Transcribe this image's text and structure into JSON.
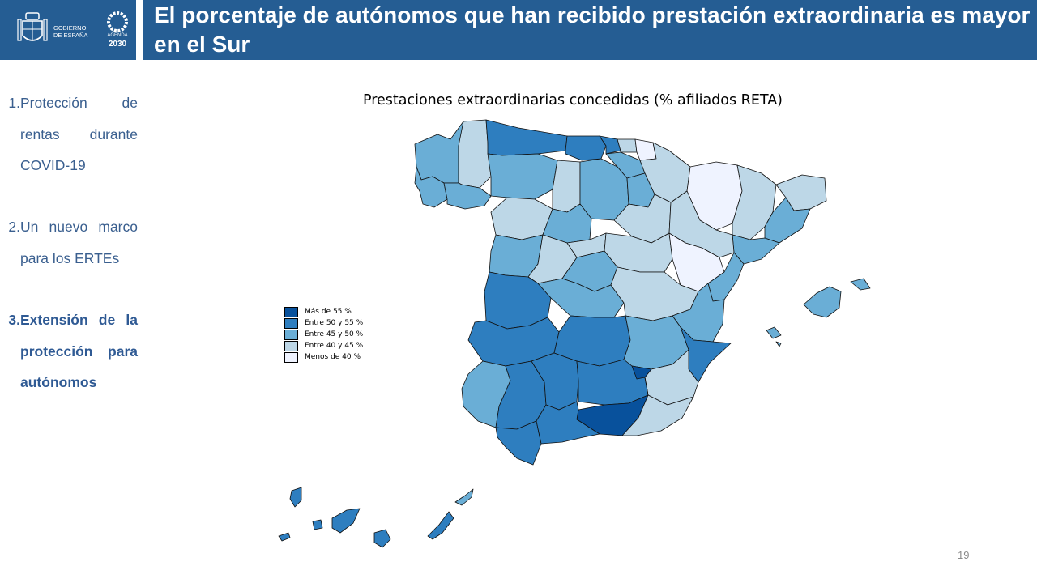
{
  "header": {
    "title": "El porcentaje de autónomos que han recibido prestación extraordinaria es mayor en el Sur",
    "gobierno_line1": "GOBIERNO",
    "gobierno_line2": "DE ESPAÑA",
    "agenda_label": "AGENDA",
    "agenda_year": "2030"
  },
  "sidebar": {
    "items": [
      {
        "number": "1.",
        "label": "Protección de rentas durante COVID-19",
        "active": false
      },
      {
        "number": "2.",
        "label": "Un nuevo marco para los ERTEs",
        "active": false
      },
      {
        "number": "3.",
        "label": "Extensión de la protección para autónomos",
        "active": true
      }
    ]
  },
  "map": {
    "title": "Prestaciones extraordinarias concedidas (% afiliados RETA)",
    "legend": [
      {
        "label": "Más de 55 %",
        "color": "#08519c"
      },
      {
        "label": "Entre 50 y 55 %",
        "color": "#2e7ebf"
      },
      {
        "label": "Entre 45 y 50 %",
        "color": "#6aaed6"
      },
      {
        "label": "Entre 40 y 45 %",
        "color": "#bdd7e7"
      },
      {
        "label": "Menos de 40 %",
        "color": "#eff3ff"
      }
    ]
  },
  "colors": {
    "header_bg": "#255d93",
    "sidebar_text": "#3a5f8f"
  },
  "footer": {
    "page_number": "19"
  }
}
